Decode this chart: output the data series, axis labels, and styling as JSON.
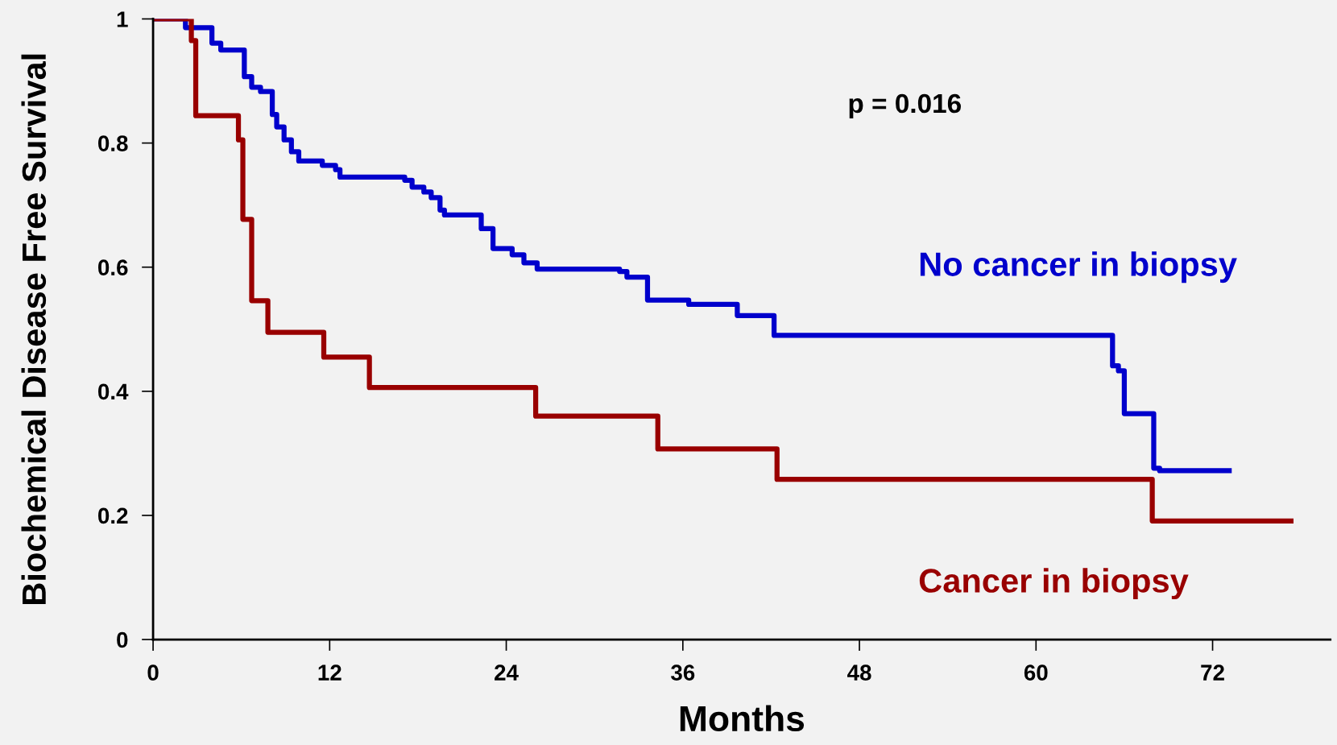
{
  "chart_data": {
    "type": "step",
    "xlabel": "Months",
    "ylabel": "Biochemical Disease Free Survival",
    "annotations": [
      "p = 0.016"
    ],
    "series": [
      {
        "name": "No cancer in biopsy",
        "color": "#0000cc",
        "x": [
          0,
          2.2,
          4.0,
          4.6,
          6.2,
          6.7,
          7.3,
          8.1,
          8.4,
          8.9,
          9.4,
          9.9,
          11.5,
          12.4,
          12.7,
          17.1,
          17.6,
          18.4,
          18.9,
          19.5,
          19.8,
          22.3,
          23.1,
          24.4,
          25.2,
          26.1,
          31.7,
          32.2,
          33.6,
          36.4,
          39.7,
          42.2,
          65.2,
          65.6,
          66.0,
          68.0,
          68.4,
          73.3
        ],
        "values": [
          1,
          0.986,
          0.961,
          0.95,
          0.907,
          0.89,
          0.883,
          0.846,
          0.826,
          0.805,
          0.786,
          0.771,
          0.764,
          0.757,
          0.745,
          0.74,
          0.729,
          0.721,
          0.712,
          0.692,
          0.684,
          0.662,
          0.63,
          0.62,
          0.607,
          0.597,
          0.593,
          0.584,
          0.547,
          0.54,
          0.522,
          0.49,
          0.441,
          0.433,
          0.364,
          0.276,
          0.272,
          0.272
        ]
      },
      {
        "name": "Cancer in biopsy",
        "color": "#990000",
        "x": [
          0,
          2.6,
          2.9,
          5.8,
          6.1,
          6.7,
          7.8,
          11.6,
          14.7,
          26.0,
          34.3,
          42.4,
          67.9,
          77.5
        ],
        "values": [
          1,
          0.965,
          0.844,
          0.805,
          0.677,
          0.546,
          0.495,
          0.455,
          0.406,
          0.36,
          0.307,
          0.258,
          0.191,
          0.191
        ]
      }
    ],
    "xlim": [
      0,
      80
    ],
    "xticks": [
      0,
      12,
      24,
      36,
      48,
      60,
      72
    ],
    "ylim": [
      0,
      1
    ],
    "yticks": [
      0,
      0.2,
      0.4,
      0.6,
      0.8,
      1
    ],
    "grid": false,
    "legend": false
  }
}
